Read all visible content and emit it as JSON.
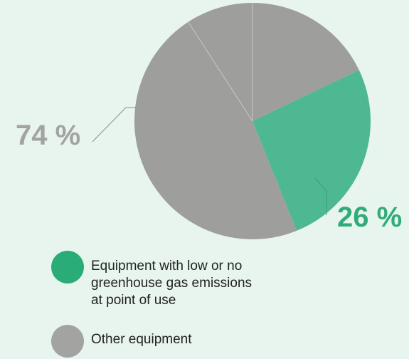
{
  "colors": {
    "background": "#e8f5ef",
    "green": "#4db892",
    "green_text": "#2fac77",
    "gray": "#9e9e9c",
    "gray_text": "#a3a3a1",
    "legend_green": "#2aac76",
    "legend_gray": "#a3a3a1",
    "divider": "#c8c8c6"
  },
  "chart_data": {
    "type": "pie",
    "slices": [
      {
        "name": "Equipment with low or no greenhouse gas emissions at point of use",
        "value": 26,
        "color_key": "green"
      },
      {
        "name": "Other equipment",
        "value": 74,
        "color_key": "gray"
      }
    ],
    "labels": {
      "green_pct": "26 %",
      "gray_pct": "74 %"
    },
    "legend": [
      {
        "label": "Equipment with low or no\ngreenhouse gas emissions\nat point of use",
        "swatch": "legend_green"
      },
      {
        "label": "Other equipment",
        "swatch": "legend_gray"
      }
    ]
  }
}
